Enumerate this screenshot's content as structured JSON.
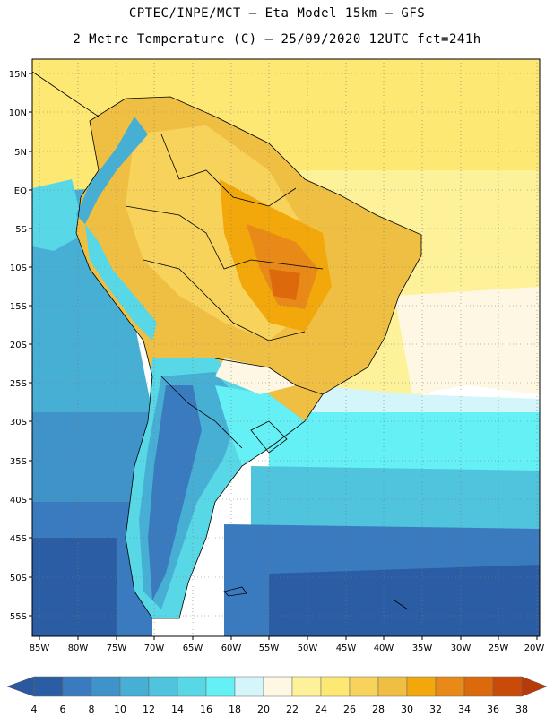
{
  "title_line1": "CPTEC/INPE/MCT –  Eta Model 15km – GFS",
  "title_line2": "2 Metre Temperature (C) – 25/09/2020 12UTC fct=241h",
  "lat_labels": [
    "15N",
    "10N",
    "5N",
    "EQ",
    "5S",
    "10S",
    "15S",
    "20S",
    "25S",
    "30S",
    "35S",
    "40S",
    "45S",
    "50S",
    "55S"
  ],
  "lon_labels": [
    "85W",
    "80W",
    "75W",
    "70W",
    "65W",
    "60W",
    "55W",
    "50W",
    "45W",
    "40W",
    "35W",
    "30W",
    "25W",
    "20W"
  ],
  "colorbar": {
    "labels": [
      "4",
      "6",
      "8",
      "10",
      "12",
      "14",
      "16",
      "18",
      "20",
      "22",
      "24",
      "26",
      "28",
      "30",
      "32",
      "34",
      "36",
      "38"
    ],
    "colors": [
      "#2b5da5",
      "#3a7bbf",
      "#3f93c8",
      "#47aed4",
      "#50c3dd",
      "#58d7e6",
      "#64f0f4",
      "#d4f6fb",
      "#fdf7e3",
      "#fdf29a",
      "#fde874",
      "#f7d35c",
      "#efbf43",
      "#f2a80b",
      "#e88918",
      "#dc6a0c",
      "#c84b09"
    ],
    "low_color": "#2a59a0",
    "high_color": "#b83a08"
  }
}
